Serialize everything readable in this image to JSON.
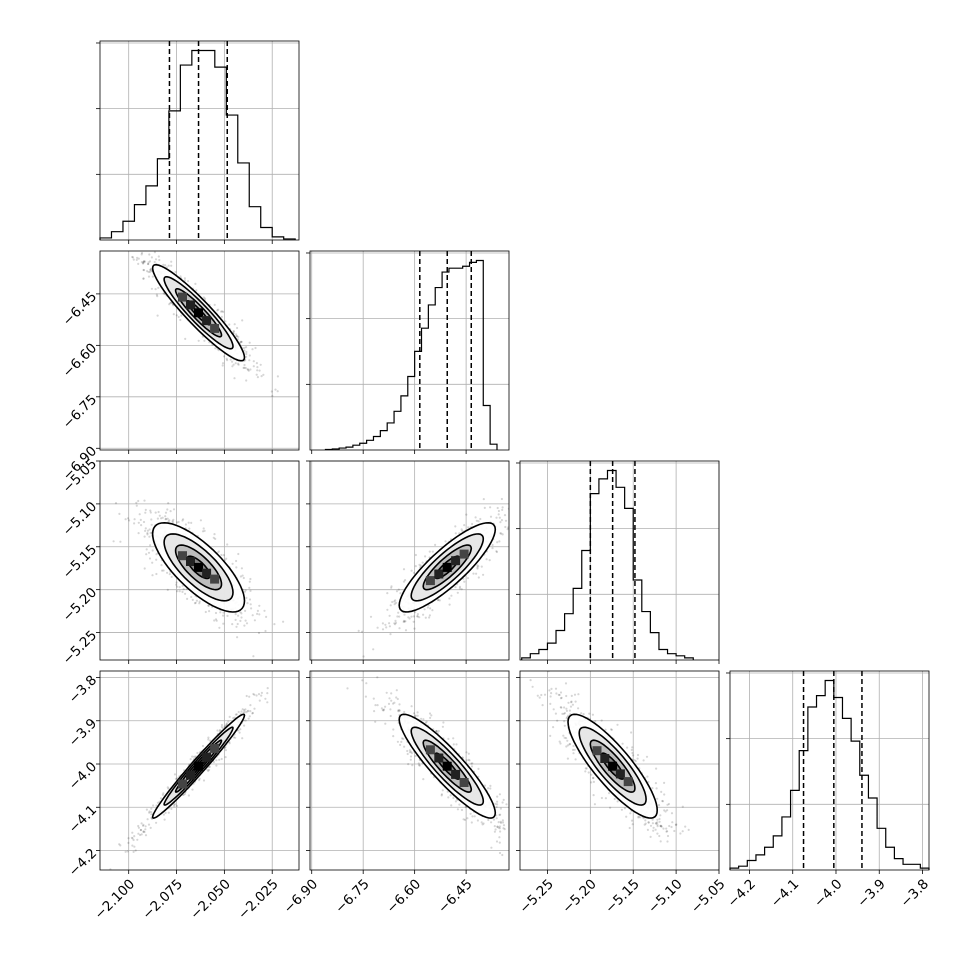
{
  "chart_data": {
    "type": "corner",
    "parameters": 4,
    "grid": true,
    "colors": {
      "points": "#000000",
      "contour": "#000000",
      "histogram": "#000000",
      "grid": "#b0b0b0"
    },
    "axis_ranges": [
      [
        -2.115,
        -2.011
      ],
      [
        -6.905,
        -6.325
      ],
      [
        -5.282,
        -5.05
      ],
      [
        -4.245,
        -3.785
      ]
    ],
    "tick_values": [
      [
        -2.1,
        -2.075,
        -2.05,
        -2.025
      ],
      [
        -6.9,
        -6.75,
        -6.6,
        -6.45
      ],
      [
        -5.25,
        -5.2,
        -5.15,
        -5.1,
        -5.05
      ],
      [
        -4.2,
        -4.1,
        -4.0,
        -3.9,
        -3.8
      ]
    ],
    "tick_labels": [
      [
        "−2.100",
        "−2.075",
        "−2.050",
        "−2.025"
      ],
      [
        "−6.90",
        "−6.75",
        "−6.60",
        "−6.45"
      ],
      [
        "−5.25",
        "−5.20",
        "−5.15",
        "−5.10",
        "−5.05"
      ],
      [
        "−4.2",
        "−4.1",
        "−4.0",
        "−3.9",
        "−3.8"
      ]
    ],
    "quantiles": [
      [
        -2.0787,
        -2.0635,
        -2.0485
      ],
      [
        -6.585,
        -6.505,
        -6.435
      ],
      [
        -5.2,
        -5.174,
        -5.148
      ],
      [
        -4.075,
        -4.005,
        -3.94
      ]
    ],
    "histograms": [
      {
        "edges": [
          -2.115,
          -2.109,
          -2.103,
          -2.097,
          -2.091,
          -2.085,
          -2.079,
          -2.073,
          -2.067,
          -2.061,
          -2.055,
          -2.049,
          -2.043,
          -2.037,
          -2.031,
          -2.025,
          -2.019,
          -2.013
        ],
        "counts": [
          0.01,
          0.04,
          0.09,
          0.17,
          0.26,
          0.39,
          0.62,
          0.84,
          0.91,
          0.91,
          0.83,
          0.6,
          0.37,
          0.16,
          0.06,
          0.015,
          0.005
        ]
      },
      {
        "edges": [
          -6.86,
          -6.84,
          -6.82,
          -6.8,
          -6.78,
          -6.76,
          -6.74,
          -6.72,
          -6.7,
          -6.68,
          -6.66,
          -6.64,
          -6.62,
          -6.6,
          -6.58,
          -6.56,
          -6.54,
          -6.52,
          -6.5,
          -6.48,
          -6.46,
          -6.44,
          -6.42,
          -6.4,
          -6.38,
          -6.36
        ],
        "counts": [
          0.003,
          0.005,
          0.01,
          0.015,
          0.025,
          0.035,
          0.05,
          0.07,
          0.1,
          0.14,
          0.2,
          0.28,
          0.38,
          0.51,
          0.63,
          0.75,
          0.84,
          0.92,
          0.94,
          0.94,
          0.95,
          0.97,
          0.98,
          0.23,
          0.03
        ]
      },
      {
        "edges": [
          -5.28,
          -5.27,
          -5.26,
          -5.25,
          -5.24,
          -5.23,
          -5.22,
          -5.21,
          -5.2,
          -5.19,
          -5.18,
          -5.17,
          -5.16,
          -5.15,
          -5.14,
          -5.13,
          -5.12,
          -5.11,
          -5.1,
          -5.09,
          -5.08
        ],
        "counts": [
          0.01,
          0.03,
          0.05,
          0.08,
          0.14,
          0.22,
          0.34,
          0.52,
          0.79,
          0.86,
          0.9,
          0.82,
          0.72,
          0.38,
          0.23,
          0.13,
          0.05,
          0.03,
          0.02,
          0.01
        ]
      },
      {
        "edges": [
          -4.245,
          -4.225,
          -4.205,
          -4.185,
          -4.165,
          -4.145,
          -4.125,
          -4.105,
          -4.085,
          -4.065,
          -4.045,
          -4.025,
          -4.005,
          -3.985,
          -3.965,
          -3.945,
          -3.925,
          -3.905,
          -3.885,
          -3.865,
          -3.845,
          -3.825,
          -3.805,
          -3.785
        ],
        "counts": [
          0.01,
          0.02,
          0.05,
          0.08,
          0.12,
          0.18,
          0.28,
          0.42,
          0.63,
          0.86,
          0.92,
          1.0,
          0.91,
          0.8,
          0.68,
          0.5,
          0.38,
          0.22,
          0.12,
          0.06,
          0.03,
          0.03,
          0.01
        ]
      }
    ],
    "correlations": [
      {
        "x": 0,
        "y": 1,
        "mean": [
          -2.0635,
          -6.505
        ],
        "sd": [
          0.012,
          0.07
        ],
        "rho": -0.93
      },
      {
        "x": 0,
        "y": 2,
        "mean": [
          -2.0635,
          -5.174
        ],
        "sd": [
          0.012,
          0.026
        ],
        "rho": -0.75
      },
      {
        "x": 1,
        "y": 2,
        "mean": [
          -6.505,
          -5.174
        ],
        "sd": [
          0.07,
          0.026
        ],
        "rho": 0.85
      },
      {
        "x": 0,
        "y": 3,
        "mean": [
          -2.0635,
          -4.005
        ],
        "sd": [
          0.012,
          0.06
        ],
        "rho": 0.98
      },
      {
        "x": 1,
        "y": 3,
        "mean": [
          -6.505,
          -4.005
        ],
        "sd": [
          0.07,
          0.06
        ],
        "rho": -0.9
      },
      {
        "x": 2,
        "y": 3,
        "mean": [
          -5.174,
          -4.005
        ],
        "sd": [
          0.026,
          0.06
        ],
        "rho": -0.85
      }
    ],
    "contour_levels_sigma": [
      0.5,
      1.0,
      1.5,
      2.0
    ]
  }
}
